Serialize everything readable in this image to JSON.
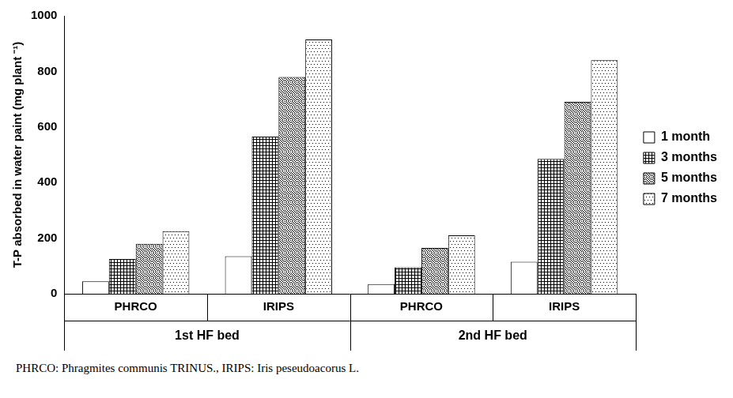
{
  "chart_data": {
    "type": "bar",
    "y_label": "T-P absorbed in water paint (mg plant ⁻¹)",
    "categories": [
      "PHRCO",
      "IRIPS",
      "PHRCO",
      "IRIPS"
    ],
    "category_groups": [
      "1st HF bed",
      "1st HF bed",
      "2nd HF bed",
      "2nd HF bed"
    ],
    "series": [
      {
        "name": "1 month",
        "color": "#ffffff",
        "values": [
          45,
          135,
          35,
          115
        ]
      },
      {
        "name": "3 months",
        "color": "#ffffff",
        "values": [
          125,
          565,
          95,
          485
        ]
      },
      {
        "name": "5 months",
        "color": "#ffffff",
        "values": [
          180,
          780,
          165,
          690
        ]
      },
      {
        "name": "7 months",
        "color": "#ffffff",
        "values": [
          225,
          915,
          210,
          840
        ]
      }
    ],
    "ylim": [
      0,
      1000
    ],
    "yticks": [
      0,
      200,
      400,
      600,
      800,
      1000
    ],
    "grid": false,
    "legend": "right",
    "caption": "PHRCO: Phragmites communis TRINUS., IRIPS: Iris peseudoacorus L."
  }
}
